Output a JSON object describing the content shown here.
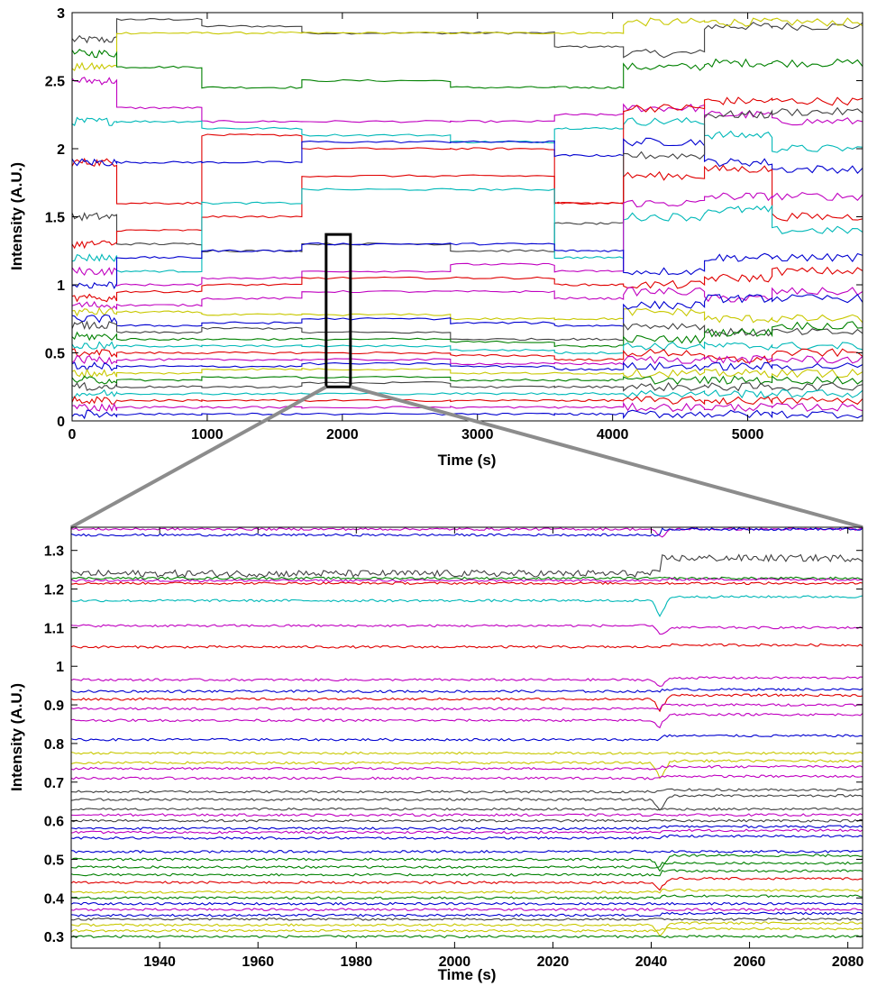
{
  "chart_data": [
    {
      "type": "line",
      "panel": "overview",
      "xlabel": "Time (s)",
      "ylabel": "Intensity (A.U.)",
      "xlim": [
        0,
        5850
      ],
      "ylim": [
        0,
        3
      ],
      "xticks": [
        0,
        1000,
        2000,
        3000,
        4000,
        5000
      ],
      "yticks": [
        0,
        0.5,
        1,
        1.5,
        2,
        2.5,
        3
      ],
      "ytick_labels": [
        "0",
        "0.5",
        "1",
        "1.5",
        "2",
        "2.5",
        "3"
      ],
      "grid": false,
      "legend": "none",
      "zoom_box": {
        "x": [
          1880,
          2060
        ],
        "y": [
          0.25,
          1.37
        ]
      },
      "segment_breaks": [
        330,
        960,
        1700,
        2800,
        3570,
        4080,
        4680,
        5180,
        5850
      ],
      "series": [
        {
          "color": "#404040",
          "values": [
            2.8,
            2.95,
            2.9,
            2.85,
            2.85,
            2.75,
            2.7,
            2.9,
            2.9
          ]
        },
        {
          "color": "#c8c800",
          "values": [
            2.6,
            2.85,
            2.85,
            2.85,
            2.85,
            2.85,
            2.93,
            2.93,
            2.93
          ]
        },
        {
          "color": "#008000",
          "values": [
            2.7,
            2.6,
            2.45,
            2.5,
            2.45,
            2.45,
            2.6,
            2.63,
            2.63
          ]
        },
        {
          "color": "#c000c0",
          "values": [
            2.5,
            2.3,
            2.2,
            2.2,
            2.2,
            2.25,
            2.3,
            2.25,
            2.2
          ]
        },
        {
          "color": "#00b8b8",
          "values": [
            2.2,
            2.2,
            2.15,
            2.1,
            2.05,
            2.15,
            2.2,
            2.1,
            2.0
          ]
        },
        {
          "color": "#e00000",
          "values": [
            1.9,
            1.6,
            2.1,
            2.0,
            2.0,
            1.6,
            2.3,
            2.35,
            2.35
          ]
        },
        {
          "color": "#0000d0",
          "values": [
            1.9,
            1.9,
            1.9,
            2.05,
            2.05,
            1.95,
            2.05,
            1.9,
            1.85
          ]
        },
        {
          "color": "#404040",
          "values": [
            1.5,
            1.3,
            1.25,
            1.3,
            1.25,
            1.45,
            1.95,
            2.25,
            2.27
          ]
        },
        {
          "color": "#e00000",
          "values": [
            1.3,
            1.4,
            1.5,
            1.8,
            1.8,
            1.6,
            1.8,
            1.85,
            1.5
          ]
        },
        {
          "color": "#00b8b8",
          "values": [
            1.2,
            1.1,
            1.6,
            1.7,
            1.7,
            1.2,
            1.5,
            1.55,
            1.4
          ]
        },
        {
          "color": "#c000c0",
          "values": [
            1.1,
            1.0,
            1.05,
            1.1,
            1.15,
            1.1,
            1.6,
            1.65,
            1.65
          ]
        },
        {
          "color": "#0000d0",
          "values": [
            1.0,
            1.2,
            1.25,
            1.3,
            1.3,
            1.25,
            1.1,
            1.2,
            1.2
          ]
        },
        {
          "color": "#e00000",
          "values": [
            0.9,
            0.95,
            1.0,
            1.05,
            1.05,
            1.0,
            1.0,
            1.05,
            1.1
          ]
        },
        {
          "color": "#c000c0",
          "values": [
            0.85,
            0.85,
            0.9,
            0.95,
            0.95,
            0.9,
            0.95,
            0.9,
            0.95
          ]
        },
        {
          "color": "#c8c800",
          "values": [
            0.8,
            0.8,
            0.78,
            0.78,
            0.75,
            0.75,
            0.8,
            0.75,
            0.75
          ]
        },
        {
          "color": "#0000d0",
          "values": [
            0.75,
            0.7,
            0.72,
            0.75,
            0.72,
            0.7,
            0.85,
            0.9,
            0.9
          ]
        },
        {
          "color": "#404040",
          "values": [
            0.7,
            0.65,
            0.68,
            0.65,
            0.6,
            0.6,
            0.7,
            0.65,
            0.65
          ]
        },
        {
          "color": "#008000",
          "values": [
            0.62,
            0.6,
            0.6,
            0.6,
            0.58,
            0.55,
            0.6,
            0.65,
            0.7
          ]
        },
        {
          "color": "#00b8b8",
          "values": [
            0.55,
            0.55,
            0.55,
            0.55,
            0.52,
            0.5,
            0.55,
            0.55,
            0.55
          ]
        },
        {
          "color": "#e00000",
          "values": [
            0.5,
            0.5,
            0.5,
            0.5,
            0.48,
            0.45,
            0.5,
            0.45,
            0.5
          ]
        },
        {
          "color": "#c000c0",
          "values": [
            0.45,
            0.45,
            0.45,
            0.45,
            0.42,
            0.42,
            0.45,
            0.45,
            0.45
          ]
        },
        {
          "color": "#0000d0",
          "values": [
            0.4,
            0.4,
            0.4,
            0.42,
            0.4,
            0.38,
            0.4,
            0.4,
            0.4
          ]
        },
        {
          "color": "#c8c800",
          "values": [
            0.35,
            0.35,
            0.38,
            0.38,
            0.35,
            0.35,
            0.35,
            0.35,
            0.35
          ]
        },
        {
          "color": "#008000",
          "values": [
            0.3,
            0.3,
            0.32,
            0.32,
            0.3,
            0.3,
            0.3,
            0.3,
            0.3
          ]
        },
        {
          "color": "#404040",
          "values": [
            0.25,
            0.25,
            0.25,
            0.28,
            0.25,
            0.25,
            0.25,
            0.25,
            0.25
          ]
        },
        {
          "color": "#00b8b8",
          "values": [
            0.2,
            0.2,
            0.2,
            0.2,
            0.2,
            0.2,
            0.2,
            0.2,
            0.2
          ]
        },
        {
          "color": "#e00000",
          "values": [
            0.15,
            0.15,
            0.15,
            0.15,
            0.15,
            0.15,
            0.15,
            0.15,
            0.15
          ]
        },
        {
          "color": "#c000c0",
          "values": [
            0.1,
            0.1,
            0.1,
            0.1,
            0.1,
            0.1,
            0.1,
            0.1,
            0.1
          ]
        },
        {
          "color": "#0000d0",
          "values": [
            0.05,
            0.05,
            0.05,
            0.05,
            0.05,
            0.05,
            0.05,
            0.05,
            0.05
          ]
        }
      ]
    },
    {
      "type": "line",
      "panel": "zoom",
      "xlabel": "Time (s)",
      "ylabel": "Intensity (A.U.)",
      "xlim": [
        1922,
        2083
      ],
      "ylim": [
        0.27,
        1.36
      ],
      "xticks": [
        1940,
        1960,
        1980,
        2000,
        2020,
        2040,
        2060,
        2080
      ],
      "yticks": [
        0.3,
        0.4,
        0.5,
        0.6,
        0.7,
        0.8,
        0.9,
        1.0,
        1.1,
        1.2,
        1.3
      ],
      "ytick_labels": [
        "0.3",
        "0.4",
        "0.5",
        "0.6",
        "0.7",
        "0.8",
        "0.9",
        "1",
        "1.1",
        "1.2",
        "1.3"
      ],
      "grid": false,
      "legend": "none",
      "dip_time": 2042,
      "step_time": 2065,
      "series": [
        {
          "color": "#c000c0",
          "level": 1.355,
          "dip": 0.02
        },
        {
          "color": "#0000d0",
          "level": 1.34,
          "after": 1.355
        },
        {
          "color": "#404040",
          "level": 1.24,
          "after": 1.28,
          "wavy": true
        },
        {
          "color": "#008000",
          "level": 1.228,
          "after": 1.228
        },
        {
          "color": "#c000c0",
          "level": 1.222,
          "after": 1.225
        },
        {
          "color": "#e00000",
          "level": 1.215,
          "after": 1.215
        },
        {
          "color": "#00b8b8",
          "level": 1.17,
          "dip": 0.04,
          "after": 1.18
        },
        {
          "color": "#c000c0",
          "level": 1.105,
          "dip": 0.02,
          "after": 1.1
        },
        {
          "color": "#e00000",
          "level": 1.05,
          "after": 1.055
        },
        {
          "color": "#c000c0",
          "level": 0.965,
          "dip": 0.02,
          "after": 0.97
        },
        {
          "color": "#0000d0",
          "level": 0.935,
          "after": 0.94
        },
        {
          "color": "#e00000",
          "level": 0.915,
          "dip": 0.03,
          "after": 0.925
        },
        {
          "color": "#c000c0",
          "level": 0.89,
          "after": 0.9
        },
        {
          "color": "#c000c0",
          "level": 0.86,
          "dip": 0.02,
          "after": 0.875
        },
        {
          "color": "#0000d0",
          "level": 0.81,
          "after": 0.82
        },
        {
          "color": "#c8c800",
          "level": 0.775,
          "after": 0.775
        },
        {
          "color": "#c8c800",
          "level": 0.75,
          "dip": 0.04,
          "after": 0.755
        },
        {
          "color": "#c000c0",
          "level": 0.735,
          "after": 0.74
        },
        {
          "color": "#c000c0",
          "level": 0.71,
          "after": 0.715
        },
        {
          "color": "#404040",
          "level": 0.675,
          "after": 0.68
        },
        {
          "color": "#404040",
          "level": 0.655,
          "dip": 0.03,
          "after": 0.665
        },
        {
          "color": "#404040",
          "level": 0.63,
          "after": 0.63
        },
        {
          "color": "#c000c0",
          "level": 0.615,
          "after": 0.615
        },
        {
          "color": "#404040",
          "level": 0.6,
          "after": 0.6
        },
        {
          "color": "#0000d0",
          "level": 0.58,
          "after": 0.585
        },
        {
          "color": "#c000c0",
          "level": 0.57,
          "after": 0.575
        },
        {
          "color": "#0000d0",
          "level": 0.555,
          "after": 0.56
        },
        {
          "color": "#0000d0",
          "level": 0.52,
          "after": 0.52
        },
        {
          "color": "#008000",
          "level": 0.5,
          "dip": 0.03,
          "after": 0.51
        },
        {
          "color": "#008000",
          "level": 0.48,
          "after": 0.49
        },
        {
          "color": "#008000",
          "level": 0.46,
          "after": 0.47
        },
        {
          "color": "#e00000",
          "level": 0.44,
          "dip": 0.02,
          "after": 0.45
        },
        {
          "color": "#c8c800",
          "level": 0.415,
          "after": 0.42
        },
        {
          "color": "#008000",
          "level": 0.4,
          "after": 0.405
        },
        {
          "color": "#0000d0",
          "level": 0.385,
          "after": 0.385
        },
        {
          "color": "#c000c0",
          "level": 0.37,
          "after": 0.37
        },
        {
          "color": "#0000d0",
          "level": 0.355,
          "after": 0.36
        },
        {
          "color": "#404040",
          "level": 0.345,
          "after": 0.345
        },
        {
          "color": "#c8c800",
          "level": 0.33,
          "dip": 0.03,
          "after": 0.335
        },
        {
          "color": "#c8c800",
          "level": 0.315,
          "after": 0.32
        },
        {
          "color": "#008000",
          "level": 0.3,
          "after": 0.3
        }
      ]
    }
  ]
}
